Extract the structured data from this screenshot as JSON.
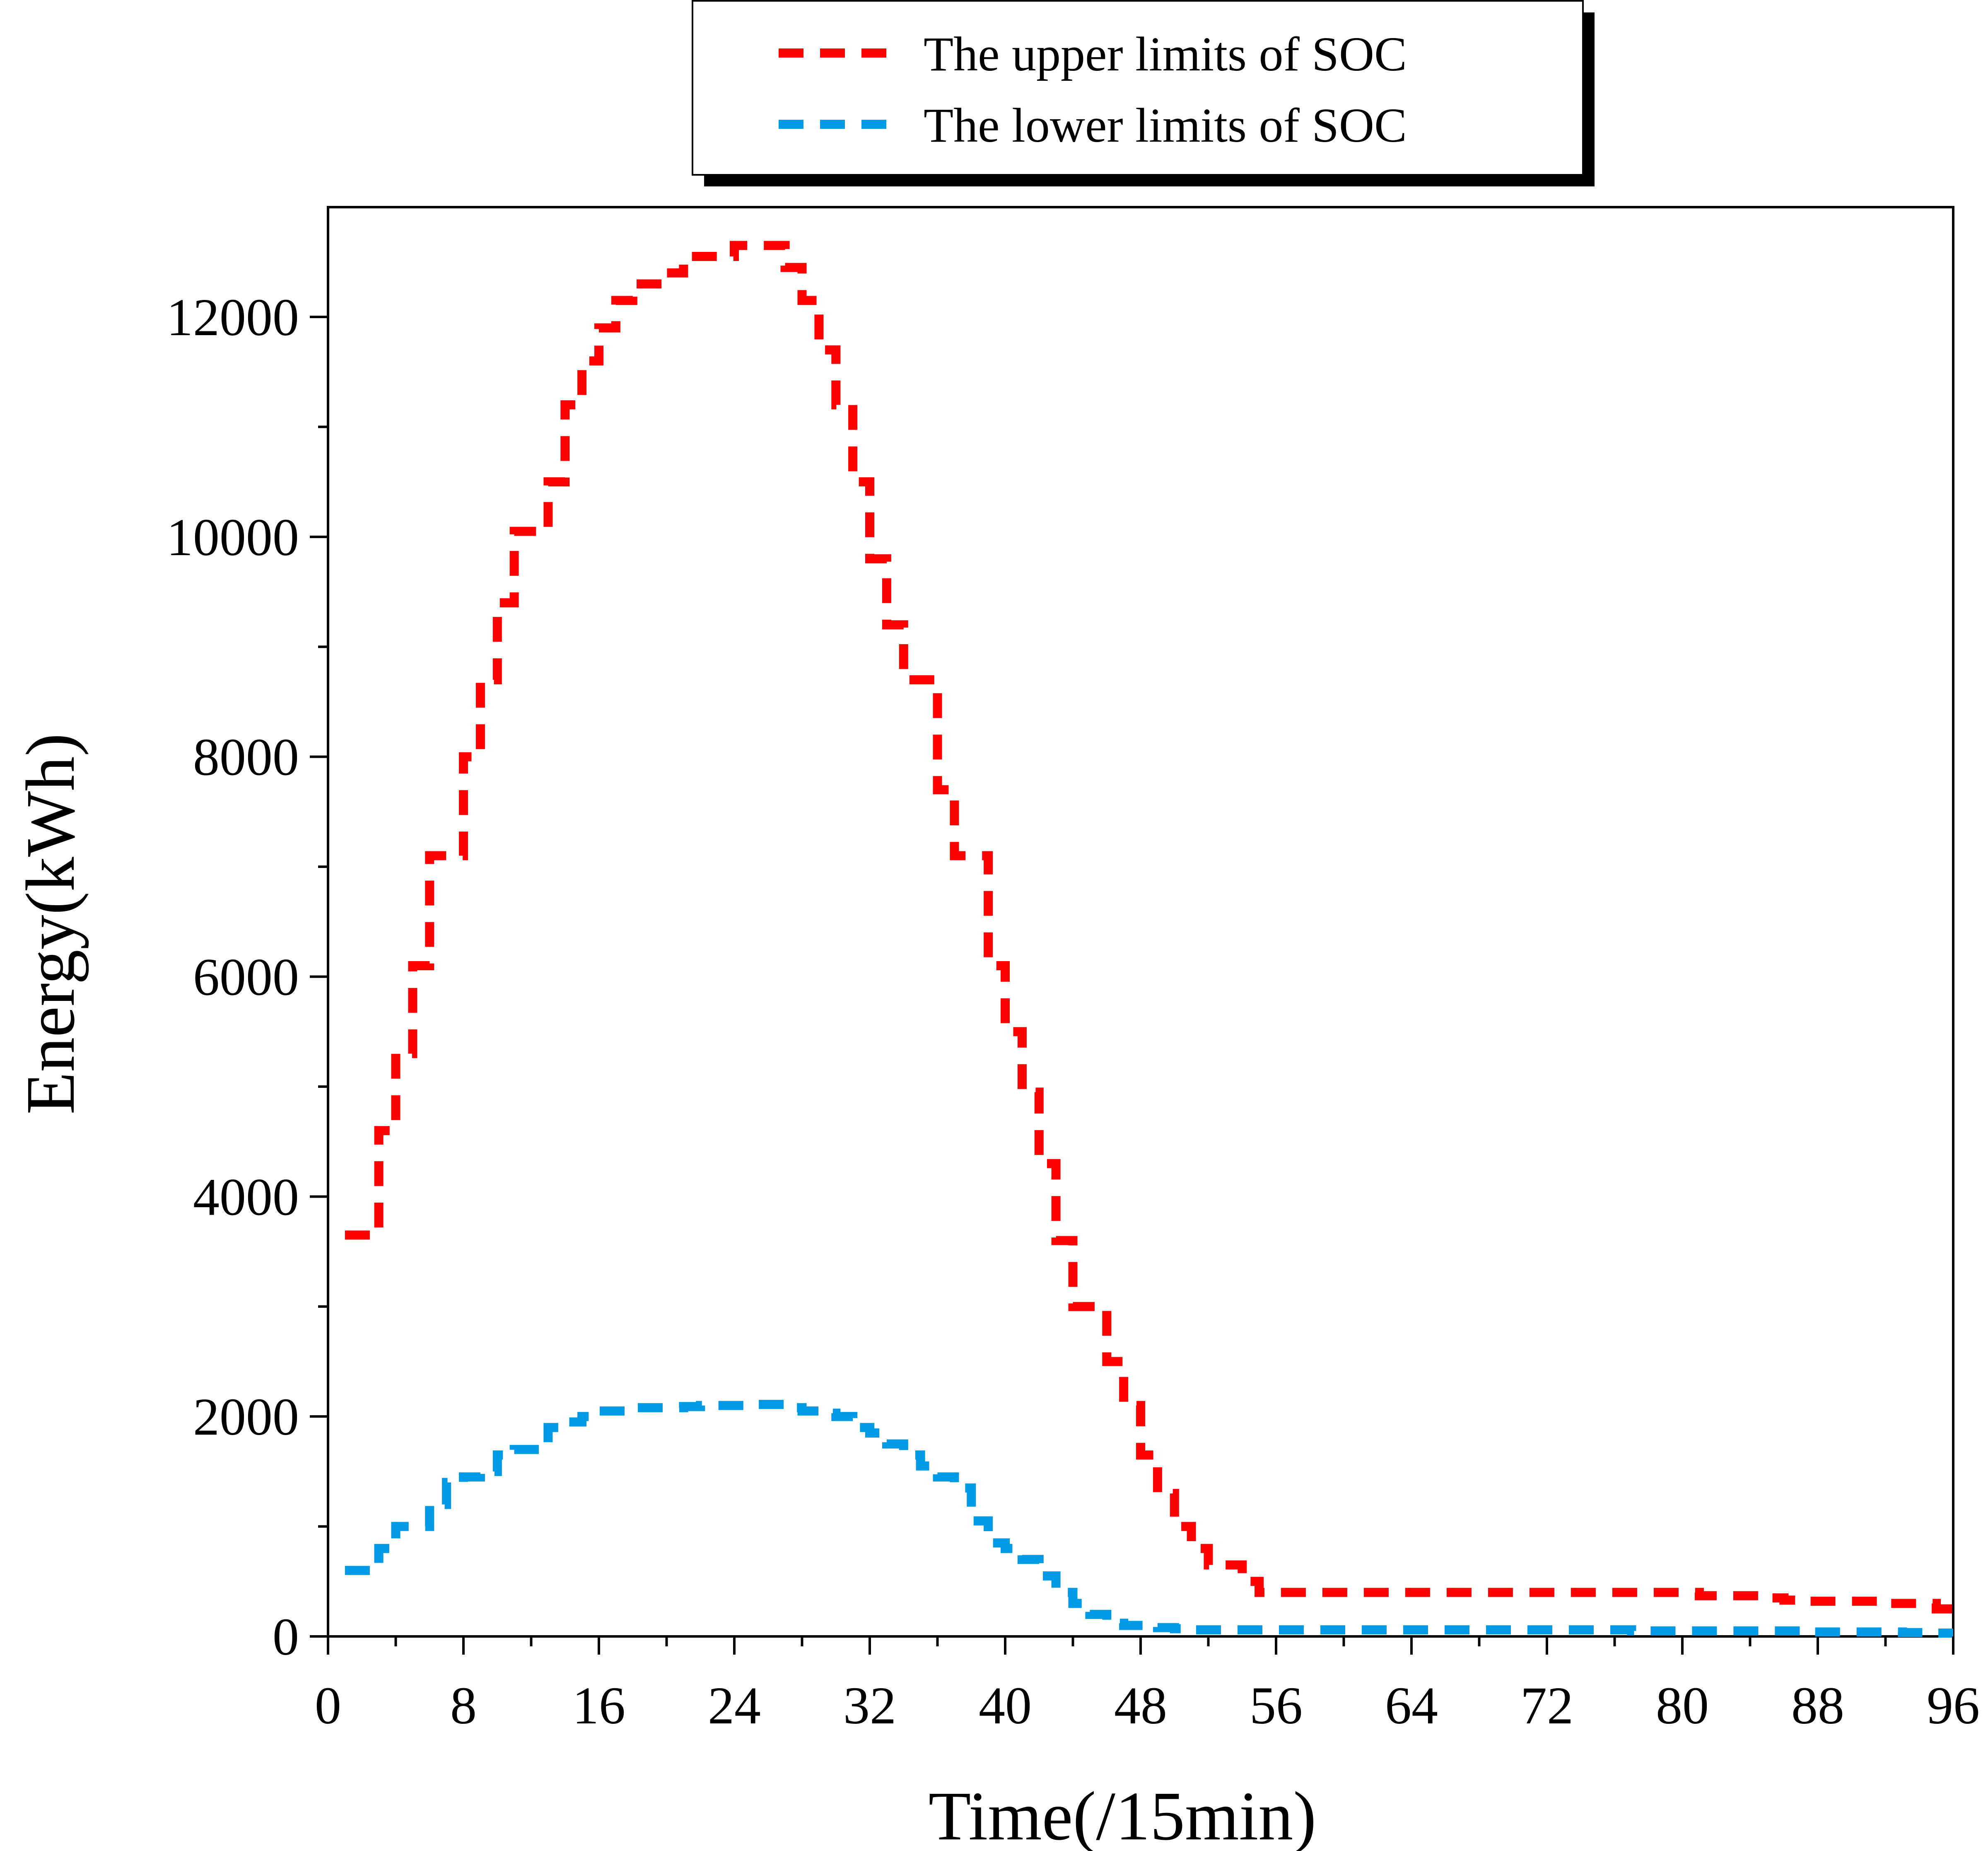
{
  "chart_data": {
    "type": "line",
    "xlabel": "Time(/15min)",
    "ylabel": "Energy(kWh)",
    "xlim": [
      0,
      96
    ],
    "ylim": [
      0,
      13000
    ],
    "xticks": [
      0,
      8,
      16,
      24,
      32,
      40,
      48,
      56,
      64,
      72,
      80,
      88,
      96
    ],
    "yticks": [
      0,
      2000,
      4000,
      6000,
      8000,
      10000,
      12000
    ],
    "x_tick_labels": [
      "0",
      "8",
      "16",
      "24",
      "32",
      "40",
      "48",
      "56",
      "64",
      "72",
      "80",
      "88",
      "96"
    ],
    "y_tick_labels": [
      "0",
      "2000",
      "4000",
      "6000",
      "8000",
      "10000",
      "12000"
    ],
    "grid": false,
    "legend_position": "top-center, outside plot",
    "step": true,
    "x": [
      1,
      2,
      3,
      4,
      5,
      6,
      7,
      8,
      9,
      10,
      11,
      12,
      13,
      14,
      15,
      16,
      17,
      18,
      19,
      20,
      21,
      22,
      23,
      24,
      25,
      26,
      27,
      28,
      29,
      30,
      31,
      32,
      33,
      34,
      35,
      36,
      37,
      38,
      39,
      40,
      41,
      42,
      43,
      44,
      45,
      46,
      47,
      48,
      49,
      50,
      51,
      52,
      53,
      54,
      55,
      56,
      57,
      58,
      59,
      60,
      61,
      62,
      63,
      64,
      65,
      66,
      67,
      68,
      69,
      70,
      71,
      72,
      73,
      74,
      75,
      76,
      77,
      78,
      79,
      80,
      81,
      82,
      83,
      84,
      85,
      86,
      87,
      88,
      89,
      90,
      91,
      92,
      93,
      94,
      95,
      96
    ],
    "series": [
      {
        "name": "The upper  limits of SOC",
        "color": "#ff0000",
        "dash": "dashed",
        "values": [
          3650,
          3650,
          4600,
          5300,
          6100,
          7100,
          7100,
          8000,
          8700,
          9400,
          10050,
          10050,
          10500,
          11200,
          11600,
          11900,
          12150,
          12300,
          12300,
          12400,
          12550,
          12550,
          12550,
          12650,
          12650,
          12650,
          12450,
          12150,
          11700,
          11200,
          10500,
          9800,
          9200,
          8700,
          8700,
          7700,
          7100,
          7100,
          6100,
          5500,
          4950,
          4300,
          3600,
          3000,
          3000,
          2500,
          2100,
          1650,
          1300,
          1000,
          800,
          650,
          650,
          500,
          400,
          400,
          400,
          400,
          400,
          400,
          400,
          400,
          400,
          400,
          400,
          400,
          400,
          400,
          400,
          400,
          400,
          400,
          400,
          400,
          400,
          400,
          400,
          400,
          400,
          400,
          370,
          370,
          370,
          370,
          350,
          330,
          320,
          320,
          320,
          320,
          320,
          300,
          300,
          300,
          250,
          180
        ]
      },
      {
        "name": "The lower limits of SOC",
        "color": "#0099e6",
        "dash": "dashed",
        "values": [
          600,
          600,
          800,
          1000,
          1000,
          1200,
          1400,
          1450,
          1500,
          1650,
          1700,
          1700,
          1900,
          1950,
          2000,
          2050,
          2050,
          2080,
          2080,
          2080,
          2090,
          2100,
          2100,
          2100,
          2110,
          2110,
          2080,
          2050,
          2030,
          2000,
          1900,
          1850,
          1750,
          1650,
          1550,
          1450,
          1350,
          1050,
          850,
          800,
          700,
          550,
          400,
          300,
          200,
          120,
          100,
          100,
          80,
          70,
          60,
          60,
          60,
          60,
          60,
          60,
          60,
          60,
          60,
          60,
          60,
          60,
          60,
          60,
          60,
          60,
          60,
          60,
          60,
          60,
          60,
          60,
          60,
          60,
          60,
          60,
          50,
          50,
          50,
          50,
          50,
          50,
          50,
          50,
          50,
          50,
          40,
          40,
          40,
          40,
          40,
          40,
          35,
          35,
          30,
          30
        ]
      }
    ]
  }
}
